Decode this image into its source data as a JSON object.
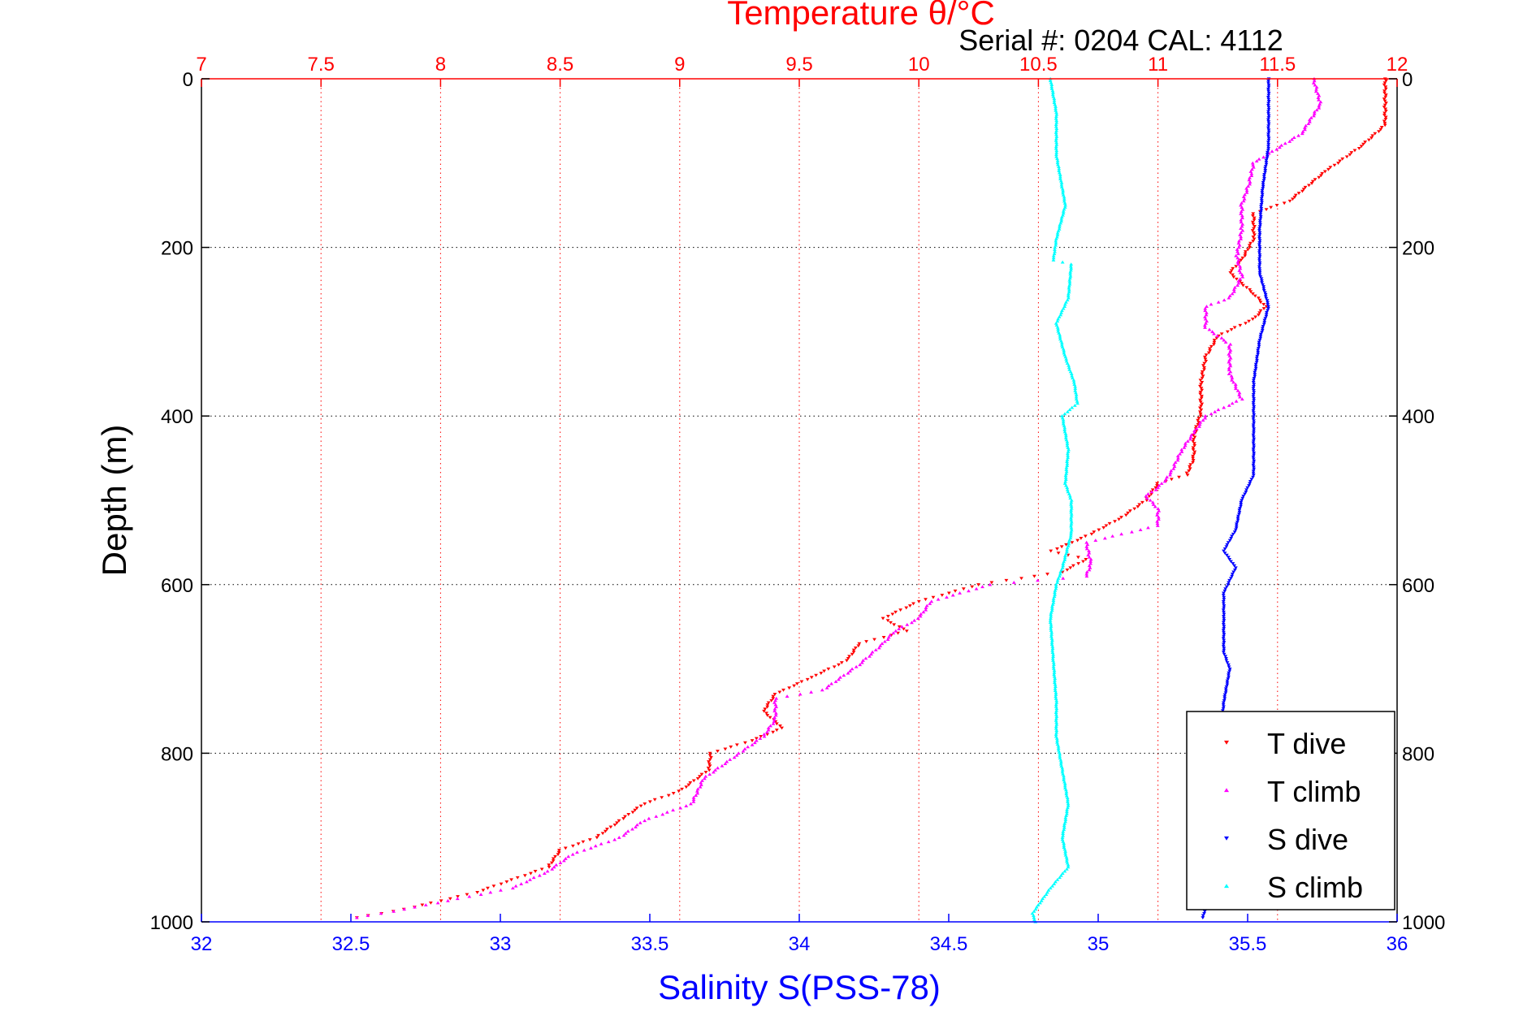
{
  "chart_data": {
    "type": "scatter",
    "title": "Temperature θ/°C",
    "subtitle": "Serial #: 0204  CAL: 4112",
    "xlabel": "Salinity S(PSS-78)",
    "ylabel": "Depth (m)",
    "ylim": [
      0,
      1000
    ],
    "y_reversed": true,
    "x_bottom_lim": [
      32,
      36
    ],
    "x_top_lim": [
      7,
      12
    ],
    "x_bottom_ticks": [
      "32",
      "32.5",
      "33",
      "33.5",
      "34",
      "34.5",
      "35",
      "35.5",
      "36"
    ],
    "x_top_ticks": [
      "7",
      "7.5",
      "8",
      "8.5",
      "9",
      "9.5",
      "10",
      "10.5",
      "11",
      "11.5",
      "12"
    ],
    "y_ticks": [
      "0",
      "200",
      "400",
      "600",
      "800",
      "1000"
    ],
    "grid": true,
    "legend_position": "bottom-right",
    "colors": {
      "title": "#ff0000",
      "top_axis": "#ff0000",
      "bottom_axis": "#0000ff",
      "t_dive": "#ff0000",
      "t_climb": "#ff00ff",
      "s_dive": "#0000ff",
      "s_climb": "#00ffff"
    },
    "series": [
      {
        "name": "T dive",
        "axis": "top",
        "marker": "down-triangle",
        "color": "#ff0000",
        "points": [
          [
            11.95,
            0
          ],
          [
            11.95,
            55
          ],
          [
            11.85,
            80
          ],
          [
            11.7,
            110
          ],
          [
            11.55,
            145
          ],
          [
            11.4,
            160
          ],
          [
            11.4,
            190
          ],
          [
            11.35,
            215
          ],
          [
            11.3,
            230
          ],
          [
            11.4,
            255
          ],
          [
            11.45,
            270
          ],
          [
            11.4,
            285
          ],
          [
            11.25,
            305
          ],
          [
            11.2,
            330
          ],
          [
            11.18,
            360
          ],
          [
            11.18,
            395
          ],
          [
            11.15,
            425
          ],
          [
            11.15,
            450
          ],
          [
            11.12,
            470
          ],
          [
            11.0,
            480
          ],
          [
            10.95,
            500
          ],
          [
            10.85,
            520
          ],
          [
            10.72,
            540
          ],
          [
            10.6,
            555
          ],
          [
            10.55,
            560
          ],
          [
            10.7,
            570
          ],
          [
            10.6,
            585
          ],
          [
            10.25,
            600
          ],
          [
            10.0,
            620
          ],
          [
            9.85,
            640
          ],
          [
            9.95,
            655
          ],
          [
            9.75,
            670
          ],
          [
            9.7,
            690
          ],
          [
            9.55,
            710
          ],
          [
            9.4,
            730
          ],
          [
            9.35,
            750
          ],
          [
            9.43,
            770
          ],
          [
            9.3,
            785
          ],
          [
            9.13,
            800
          ],
          [
            9.12,
            820
          ],
          [
            9.0,
            845
          ],
          [
            8.85,
            860
          ],
          [
            8.75,
            880
          ],
          [
            8.65,
            900
          ],
          [
            8.5,
            915
          ],
          [
            8.45,
            935
          ],
          [
            8.3,
            950
          ],
          [
            8.15,
            965
          ],
          [
            7.85,
            985
          ],
          [
            7.65,
            995
          ]
        ]
      },
      {
        "name": "T climb",
        "axis": "top",
        "marker": "up-triangle",
        "color": "#ff00ff",
        "points": [
          [
            11.65,
            0
          ],
          [
            11.68,
            30
          ],
          [
            11.6,
            65
          ],
          [
            11.4,
            100
          ],
          [
            11.38,
            125
          ],
          [
            11.35,
            150
          ],
          [
            11.35,
            180
          ],
          [
            11.33,
            210
          ],
          [
            11.35,
            235
          ],
          [
            11.3,
            260
          ],
          [
            11.2,
            270
          ],
          [
            11.2,
            295
          ],
          [
            11.3,
            315
          ],
          [
            11.3,
            350
          ],
          [
            11.35,
            380
          ],
          [
            11.2,
            400
          ],
          [
            11.15,
            420
          ],
          [
            11.1,
            440
          ],
          [
            11.05,
            470
          ],
          [
            11.0,
            485
          ],
          [
            10.95,
            495
          ],
          [
            11.0,
            510
          ],
          [
            11.0,
            530
          ],
          [
            10.7,
            550
          ],
          [
            10.72,
            575
          ],
          [
            10.7,
            590
          ],
          [
            10.3,
            600
          ],
          [
            10.05,
            620
          ],
          [
            10.0,
            640
          ],
          [
            9.9,
            655
          ],
          [
            9.85,
            670
          ],
          [
            9.75,
            695
          ],
          [
            9.6,
            725
          ],
          [
            9.4,
            735
          ],
          [
            9.4,
            760
          ],
          [
            9.35,
            780
          ],
          [
            9.25,
            800
          ],
          [
            9.1,
            830
          ],
          [
            9.05,
            860
          ],
          [
            8.85,
            880
          ],
          [
            8.75,
            900
          ],
          [
            8.55,
            920
          ],
          [
            8.45,
            940
          ],
          [
            8.3,
            960
          ],
          [
            7.85,
            985
          ],
          [
            7.65,
            995
          ]
        ]
      },
      {
        "name": "S dive",
        "axis": "bottom",
        "marker": "down-triangle",
        "color": "#0000ff",
        "points": [
          [
            35.57,
            0
          ],
          [
            35.57,
            80
          ],
          [
            35.55,
            130
          ],
          [
            35.54,
            180
          ],
          [
            35.54,
            230
          ],
          [
            35.57,
            270
          ],
          [
            35.54,
            310
          ],
          [
            35.52,
            360
          ],
          [
            35.52,
            420
          ],
          [
            35.52,
            470
          ],
          [
            35.48,
            500
          ],
          [
            35.46,
            535
          ],
          [
            35.42,
            560
          ],
          [
            35.46,
            580
          ],
          [
            35.42,
            610
          ],
          [
            35.42,
            640
          ],
          [
            35.42,
            680
          ],
          [
            35.44,
            700
          ],
          [
            35.42,
            740
          ],
          [
            35.41,
            780
          ],
          [
            35.41,
            820
          ],
          [
            35.39,
            870
          ],
          [
            35.38,
            920
          ],
          [
            35.37,
            970
          ],
          [
            35.35,
            995
          ]
        ]
      },
      {
        "name": "S climb",
        "axis": "bottom",
        "marker": "up-triangle",
        "color": "#00ffff",
        "points": [
          [
            34.84,
            0
          ],
          [
            34.86,
            40
          ],
          [
            34.86,
            90
          ],
          [
            34.89,
            150
          ],
          [
            34.86,
            190
          ],
          [
            34.85,
            215
          ],
          [
            34.91,
            220
          ],
          [
            34.9,
            260
          ],
          [
            34.86,
            290
          ],
          [
            34.89,
            330
          ],
          [
            34.92,
            360
          ],
          [
            34.93,
            385
          ],
          [
            34.88,
            400
          ],
          [
            34.9,
            440
          ],
          [
            34.89,
            480
          ],
          [
            34.91,
            500
          ],
          [
            34.91,
            540
          ],
          [
            34.88,
            580
          ],
          [
            34.86,
            600
          ],
          [
            34.84,
            640
          ],
          [
            34.85,
            690
          ],
          [
            34.86,
            740
          ],
          [
            34.86,
            780
          ],
          [
            34.88,
            820
          ],
          [
            34.9,
            860
          ],
          [
            34.88,
            900
          ],
          [
            34.9,
            935
          ],
          [
            34.84,
            960
          ],
          [
            34.78,
            990
          ],
          [
            34.79,
            1000
          ]
        ]
      }
    ]
  }
}
